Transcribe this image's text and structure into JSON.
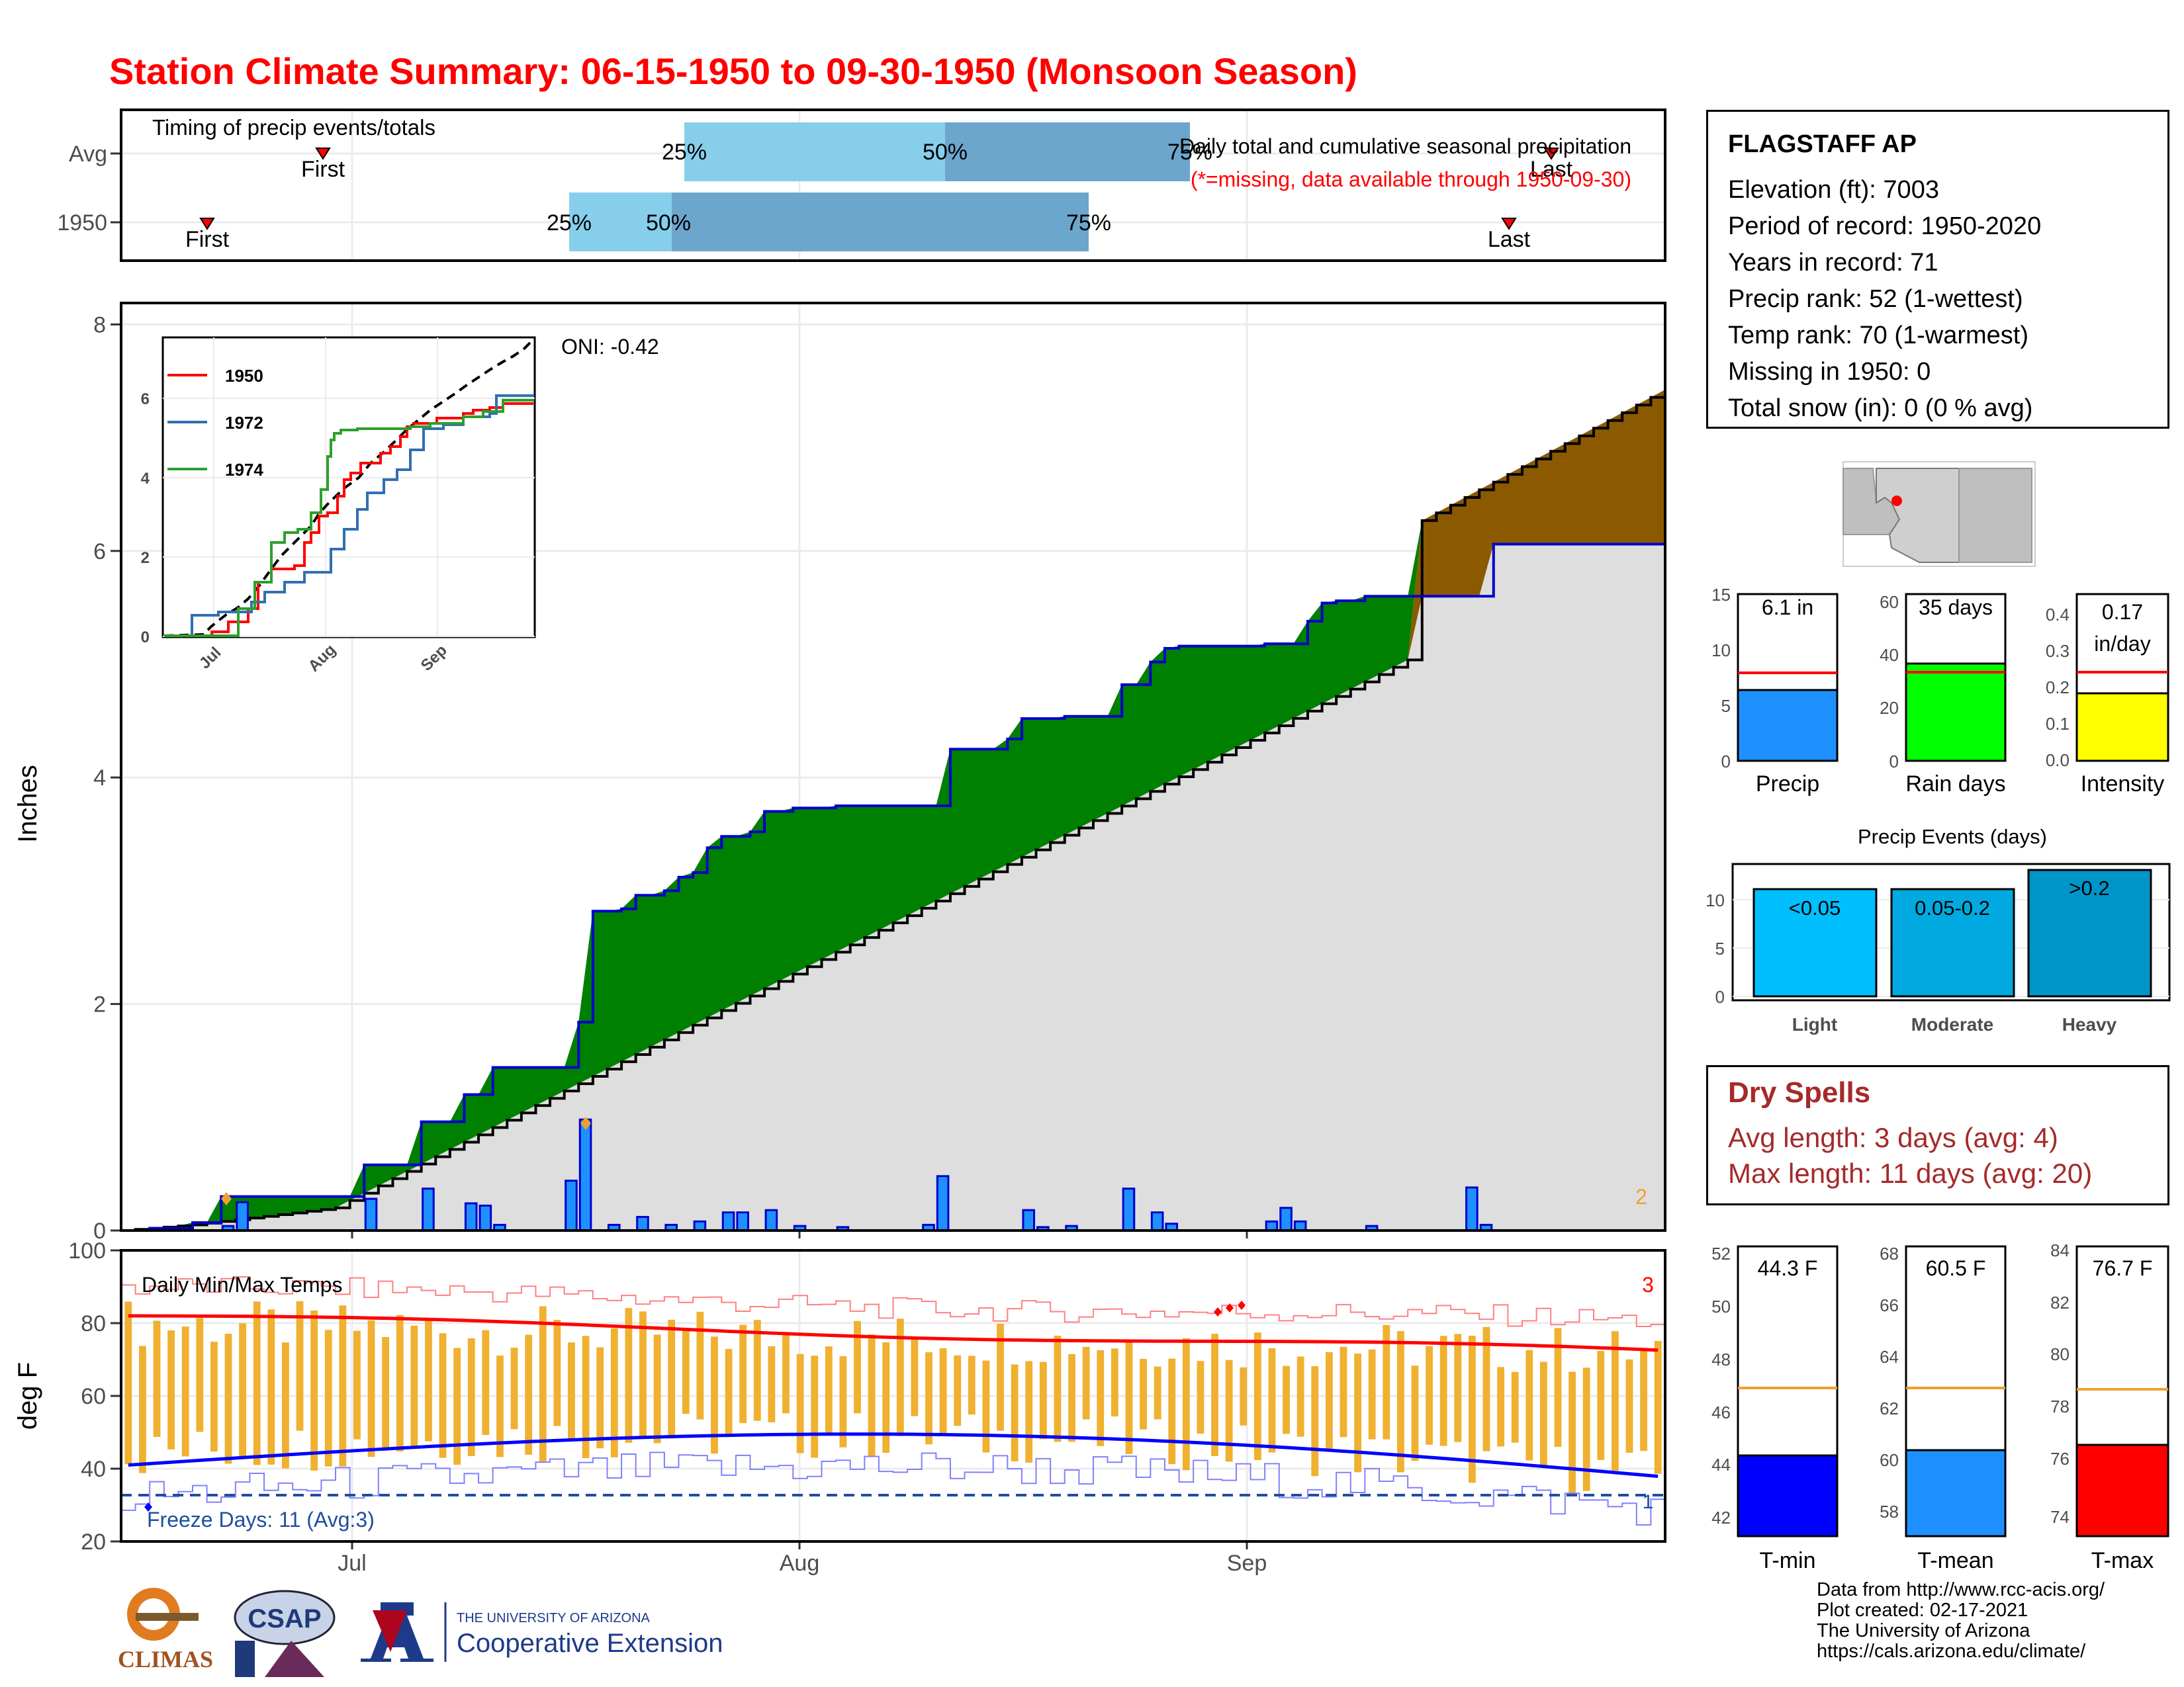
{
  "title": "Station Climate Summary: 06-15-1950 to 09-30-1950 (Monsoon Season)",
  "colors": {
    "title": "#ff0000",
    "wet": "#008000",
    "dry": "#8b5a00",
    "precip_bar": "#1e90ff",
    "avg_fill": "#dedede",
    "cum_line": "#0000cc",
    "tmax": "#ff0000",
    "tmin": "#0000ff",
    "range_bar": "#f0b030"
  },
  "timing": {
    "label": "Timing of precip events/totals",
    "rows": [
      "Avg",
      "1950"
    ],
    "avg": {
      "first": "First",
      "q25": "25%",
      "q50": "50%",
      "q75": "75%",
      "last": "Last"
    },
    "y1950": {
      "first": "First",
      "q25": "25%",
      "q50": "50%",
      "q75": "75%",
      "last": "Last"
    }
  },
  "station": {
    "name": "FLAGSTAFF AP",
    "lines": [
      "Elevation (ft): 7003",
      "Period of record: 1950-2020",
      "Years in record: 71",
      "Precip rank: 52 (1-wettest)",
      "Temp rank: 70 (1-warmest)",
      "Missing in 1950: 0",
      "Total snow (in): 0 (0 % avg)"
    ]
  },
  "precip_chart": {
    "ylabel": "Inches",
    "yticks": [
      "0",
      "2",
      "4",
      "6",
      "8"
    ],
    "xticks": [
      "Jul",
      "Aug",
      "Sep"
    ],
    "subtitle": "Daily total and cumulative seasonal precipitation",
    "note": "(*=missing, data available through 1950-09-30)",
    "oni": "ONI: -0.42",
    "corner_count": "2"
  },
  "inset": {
    "series": [
      "1950",
      "1972",
      "1974"
    ],
    "yticks": [
      "0",
      "2",
      "4",
      "6"
    ],
    "xticks": [
      "Jul",
      "Aug",
      "Sep"
    ]
  },
  "temp_chart": {
    "ylabel": "deg F",
    "yticks": [
      "20",
      "40",
      "60",
      "80",
      "100"
    ],
    "xticks": [
      "Jul",
      "Aug",
      "Sep"
    ],
    "label": "Daily Min/Max Temps",
    "freeze": "Freeze Days: 11 (Avg:3)",
    "count_hot": "3",
    "count_cold": "1"
  },
  "chart_data": [
    {
      "type": "bar",
      "title": "",
      "categories": [
        "Precip",
        "Rain days",
        "Intensity"
      ],
      "values": [
        6.1,
        35,
        0.17
      ],
      "labels": [
        "6.1 in",
        "35 days",
        "0.17",
        "in/day"
      ],
      "averages": [
        7.7,
        32,
        0.23
      ],
      "yticks": [
        [
          "0",
          "5",
          "10",
          "15"
        ],
        [
          "0",
          "20",
          "40",
          "60"
        ],
        [
          "0.0",
          "0.1",
          "0.2",
          "0.3",
          "0.4"
        ]
      ]
    },
    {
      "type": "bar",
      "title": "Precip Events (days)",
      "categories": [
        "Light",
        "Moderate",
        "Heavy"
      ],
      "values": [
        11,
        11,
        13
      ],
      "labels": [
        "<0.05",
        "0.05-0.2",
        ">0.2"
      ],
      "yticks": [
        "0",
        "5",
        "10"
      ]
    },
    {
      "type": "bar",
      "title": "",
      "categories": [
        "T-min",
        "T-mean",
        "T-max"
      ],
      "values": [
        44.3,
        60.5,
        76.7
      ],
      "labels": [
        "44.3 F",
        "60.5 F",
        "76.7 F"
      ],
      "averages": [
        46.9,
        62.8,
        78.8
      ],
      "yticks": [
        [
          "42",
          "44",
          "46",
          "48",
          "50",
          "52"
        ],
        [
          "58",
          "60",
          "62",
          "64",
          "66",
          "68"
        ],
        [
          "74",
          "76",
          "78",
          "80",
          "82",
          "84"
        ]
      ]
    }
  ],
  "dry_spells": {
    "title": "Dry Spells",
    "lines": [
      "Avg length: 3 days (avg: 4)",
      "Max length: 11 days (avg: 20)"
    ]
  },
  "credits": [
    "Data from http://www.rcc-acis.org/",
    "Plot created: 02-17-2021",
    "The University of Arizona",
    "https://cals.arizona.edu/climate/"
  ],
  "logos": {
    "climas": "CLIMAS",
    "csap": "CSAP",
    "ua_small": "THE UNIVERSITY OF ARIZONA",
    "ua_big": "Cooperative Extension"
  }
}
